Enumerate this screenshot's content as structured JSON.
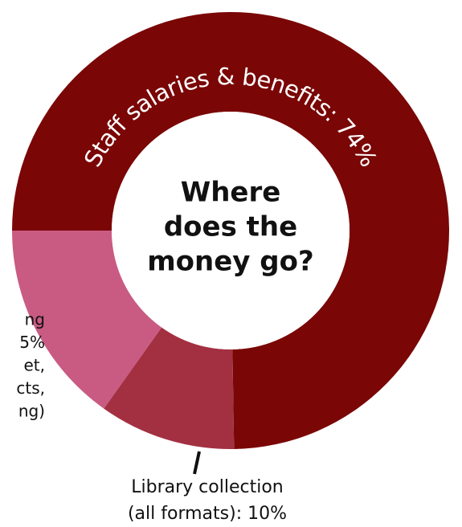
{
  "chart_data": {
    "type": "donut",
    "center_title": [
      "Where",
      "does the",
      "money go?"
    ],
    "categories": [
      [
        "Staff salaries & benefits: 74%"
      ],
      [
        "Library collection",
        "(all formats): 10%"
      ],
      [
        "ng",
        "5%",
        "et,",
        "cts,",
        "ng)"
      ]
    ],
    "values": [
      74,
      10,
      15
    ],
    "colors": [
      "#7a0606",
      "#a33041",
      "#c95b83"
    ]
  }
}
